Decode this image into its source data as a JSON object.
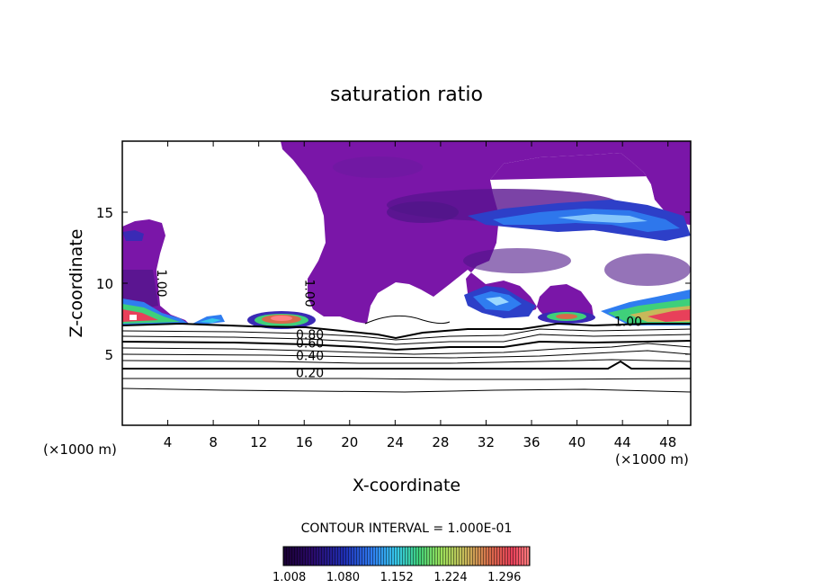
{
  "chart_data": {
    "type": "heatmap",
    "title": "saturation ratio",
    "xlabel": "X-coordinate",
    "ylabel": "Z-coordinate",
    "x_unit_left": "(×1000 m)",
    "x_unit_right": "(×1000 m)",
    "xlim": [
      0,
      50
    ],
    "ylim": [
      0,
      20
    ],
    "xticks": [
      4,
      8,
      12,
      16,
      20,
      24,
      28,
      32,
      36,
      40,
      44,
      48
    ],
    "yticks": [
      5,
      10,
      15
    ],
    "contour_interval_text": "CONTOUR INTERVAL = 1.000E-01",
    "colorbar": {
      "labels": [
        "1.008",
        "1.080",
        "1.152",
        "1.224",
        "1.296"
      ],
      "range": [
        1.0,
        1.33
      ],
      "colors": [
        "#1a0033",
        "#2a0a6a",
        "#1f2fb5",
        "#2f7df0",
        "#36c8e8",
        "#3fd07a",
        "#9be05a",
        "#c8b85a",
        "#d86a4a",
        "#e8405a",
        "#ff8080"
      ]
    },
    "contour_labels": [
      {
        "text": "1.00",
        "x": 3.5,
        "y": 10.0,
        "rotate": 90
      },
      {
        "text": "1.00",
        "x": 16.5,
        "y": 9.3,
        "rotate": 90
      },
      {
        "text": "1.00",
        "x": 44.5,
        "y": 7.3,
        "rotate": 0
      },
      {
        "text": "0.80",
        "x": 16.5,
        "y": 6.4,
        "rotate": 0
      },
      {
        "text": "0.60",
        "x": 16.5,
        "y": 5.8,
        "rotate": 0
      },
      {
        "text": "0.40",
        "x": 16.5,
        "y": 4.9,
        "rotate": 0
      },
      {
        "text": "0.20",
        "x": 16.5,
        "y": 3.7,
        "rotate": 0
      }
    ]
  }
}
